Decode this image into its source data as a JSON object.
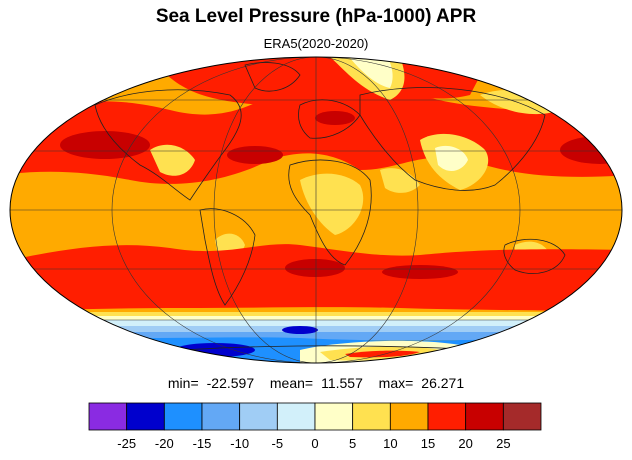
{
  "title": "Sea Level Pressure (hPa-1000) APR",
  "subtitle": "ERA5(2020-2020)",
  "stats": {
    "min_label": "min=",
    "min": "-22.597",
    "mean_label": "mean=",
    "mean": "11.557",
    "max_label": "max=",
    "max": "26.271"
  },
  "colorbar": {
    "colors": [
      "#8a2be2",
      "#0000cd",
      "#1e90ff",
      "#63a8f5",
      "#a0cdf5",
      "#d2f0fa",
      "#ffffc8",
      "#ffe150",
      "#ffaa00",
      "#ff1e00",
      "#c80000",
      "#a52a2a"
    ],
    "tick_labels": [
      "-25",
      "-20",
      "-15",
      "-10",
      "-5",
      "0",
      "5",
      "10",
      "15",
      "20",
      "25"
    ]
  },
  "colors": {
    "background_orange": "#ffaa00",
    "red": "#ff1e00",
    "dark_red": "#c80000",
    "brown": "#a52a2a",
    "yellow": "#ffe150",
    "pale_yellow": "#ffffc8",
    "pale_blue": "#d2f0fa",
    "light_blue": "#a0cdf5",
    "mid_blue": "#63a8f5",
    "blue": "#1e90ff",
    "dark_blue": "#0000cd"
  }
}
